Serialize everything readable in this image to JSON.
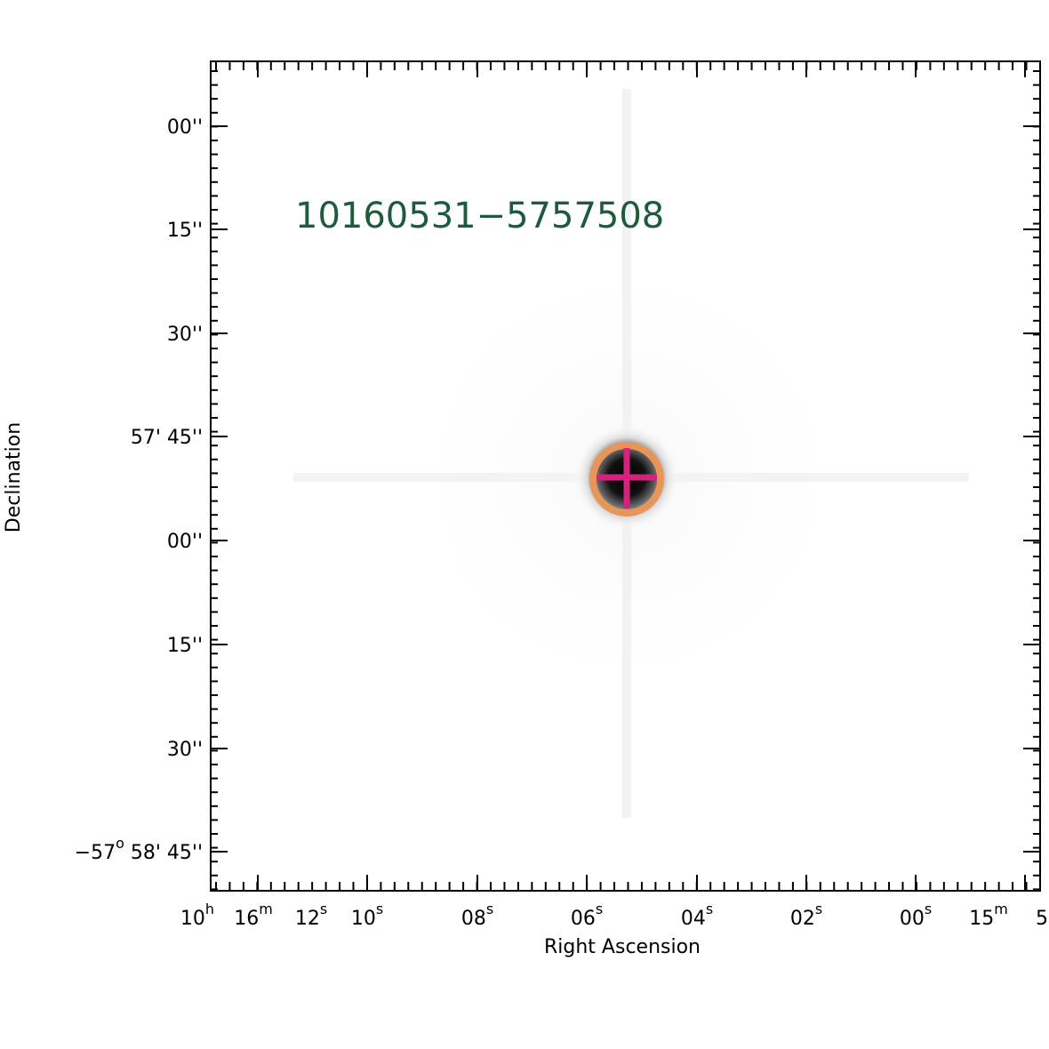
{
  "source_label": "10160531−5757508",
  "x_axis": {
    "label": "Right Ascension",
    "ticks": [
      {
        "text": "10",
        "sup": "h"
      },
      {
        "text": "16",
        "sup": "m"
      },
      {
        "text": "12",
        "sup": "s"
      },
      {
        "text": "10",
        "sup": "s"
      },
      {
        "text": "08",
        "sup": "s"
      },
      {
        "text": "06",
        "sup": "s"
      },
      {
        "text": "04",
        "sup": "s"
      },
      {
        "text": "02",
        "sup": "s"
      },
      {
        "text": "00",
        "sup": "s"
      },
      {
        "text": "15",
        "sup": "m"
      },
      {
        "text": "5"
      }
    ]
  },
  "y_axis": {
    "label": "Declination",
    "ticks": [
      [
        {
          "text": "00''"
        }
      ],
      [
        {
          "text": "15''"
        }
      ],
      [
        {
          "text": "30''"
        }
      ],
      [
        {
          "text": "57' 45''"
        }
      ],
      [
        {
          "text": "00''"
        }
      ],
      [
        {
          "text": "15''"
        }
      ],
      [
        {
          "text": "30''"
        }
      ],
      [
        {
          "text": "−57",
          "sup": "o"
        },
        {
          "text": " 58' 45''"
        }
      ]
    ]
  }
}
